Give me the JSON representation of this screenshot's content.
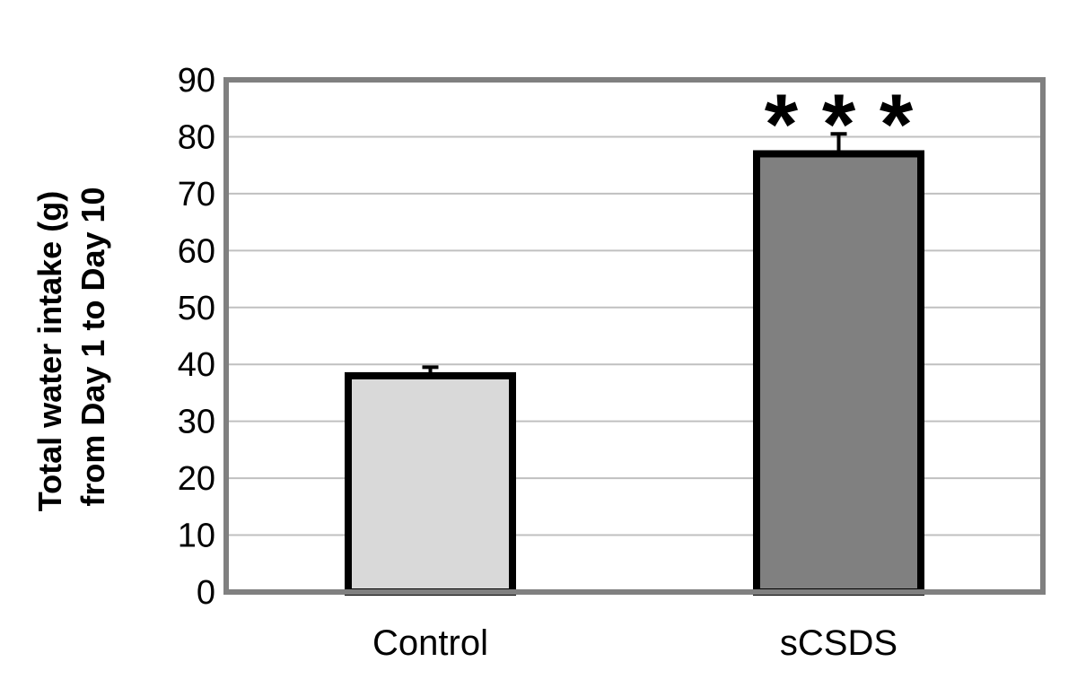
{
  "chart_data": {
    "type": "bar",
    "categories": [
      "Control",
      "sCSDS"
    ],
    "values": [
      38,
      77
    ],
    "errors": [
      1.5,
      3.5
    ],
    "bar_colors": [
      "#d9d9d9",
      "#808080"
    ],
    "significance": [
      "",
      "* * *"
    ],
    "ylabel_lines": [
      "Total water intake (g)",
      "from Day 1 to Day 10"
    ],
    "ylim": [
      0,
      90
    ],
    "yticks": [
      0,
      10,
      20,
      30,
      40,
      50,
      60,
      70,
      80,
      90
    ],
    "grid": true,
    "frame_color": "#808080",
    "grid_color": "#c0c0c0"
  }
}
